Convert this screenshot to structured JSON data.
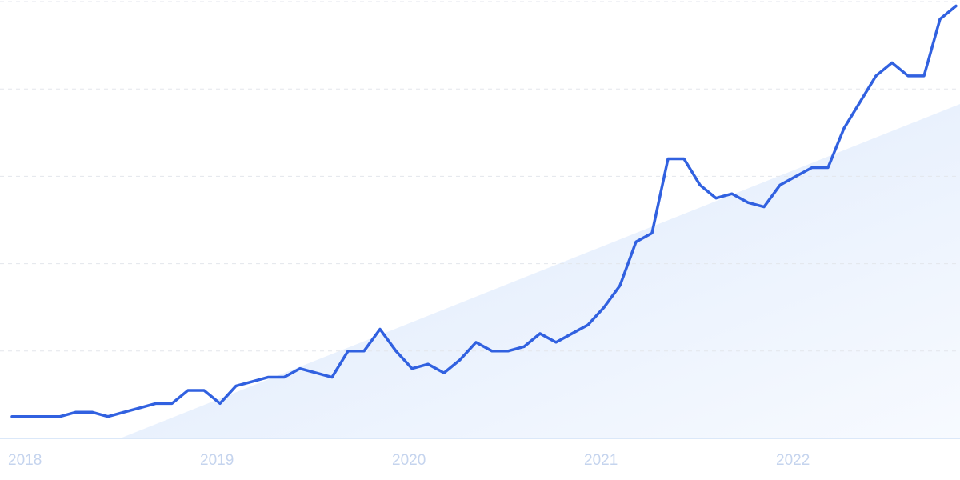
{
  "chart_data": {
    "type": "line",
    "categories": [
      "2018",
      null,
      null,
      null,
      null,
      null,
      null,
      null,
      null,
      null,
      null,
      null,
      "2019",
      null,
      null,
      null,
      null,
      null,
      null,
      null,
      null,
      null,
      null,
      null,
      "2020",
      null,
      null,
      null,
      null,
      null,
      null,
      null,
      null,
      null,
      null,
      null,
      "2021",
      null,
      null,
      null,
      null,
      null,
      null,
      null,
      null,
      null,
      null,
      null,
      "2022",
      null,
      null,
      null,
      null,
      null,
      null,
      null,
      null,
      null,
      null,
      null
    ],
    "values": [
      5,
      5,
      5,
      5,
      6,
      6,
      5,
      6,
      7,
      8,
      8,
      11,
      11,
      8,
      12,
      13,
      14,
      14,
      16,
      15,
      14,
      20,
      20,
      25,
      20,
      16,
      17,
      15,
      18,
      22,
      20,
      20,
      21,
      24,
      22,
      24,
      26,
      30,
      35,
      45,
      47,
      64,
      64,
      58,
      55,
      56,
      54,
      53,
      58,
      60,
      62,
      62,
      71,
      77,
      83,
      86,
      83,
      83,
      96,
      99
    ],
    "color": "#3161e0",
    "ylim": [
      0,
      100
    ],
    "yticks": [
      0,
      20,
      40,
      60,
      80,
      100
    ],
    "grid": true
  }
}
